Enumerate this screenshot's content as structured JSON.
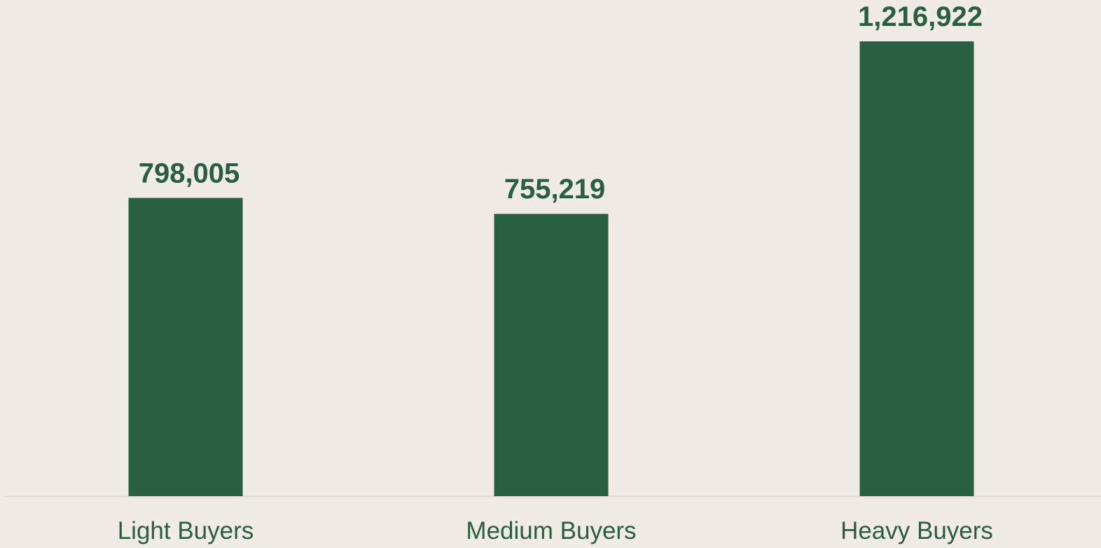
{
  "chart_data": {
    "type": "bar",
    "categories": [
      "Light Buyers",
      "Medium Buyers",
      "Heavy Buyers"
    ],
    "values": [
      798005,
      755219,
      1216922
    ],
    "value_labels": [
      "798,005",
      "755,219",
      "1,216,922"
    ],
    "color": "#276141"
  }
}
